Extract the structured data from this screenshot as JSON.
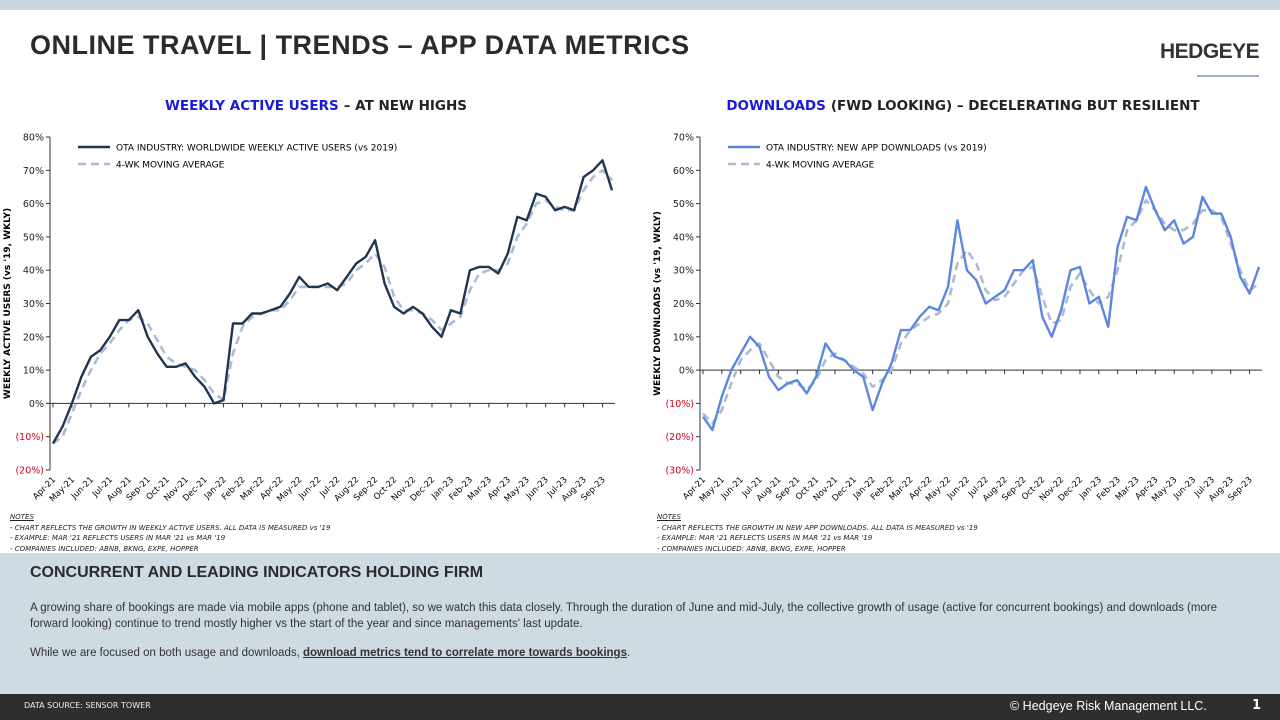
{
  "header": {
    "title": "ONLINE TRAVEL | TRENDS – APP DATA METRICS",
    "logo": "HEDGEYE"
  },
  "chart_data": [
    {
      "type": "line",
      "title_highlight": "WEEKLY ACTIVE USERS",
      "title": "– AT NEW HIGHS",
      "ylabel": "WEEKLY ACTIVE USERS (vs '19, WKLY)",
      "categories": [
        "Apr-21",
        null,
        "May-21",
        null,
        "Jun-21",
        null,
        "Jul-21",
        null,
        "Aug-21",
        null,
        "Sep-21",
        null,
        "Oct-21",
        null,
        "Nov-21",
        null,
        "Dec-21",
        null,
        "Jan-22",
        null,
        "Feb-22",
        null,
        "Mar-22",
        null,
        "Apr-22",
        null,
        "May-22",
        null,
        "Jun-22",
        null,
        "Jul-22",
        null,
        "Aug-22",
        null,
        "Sep-22",
        null,
        "Oct-22",
        null,
        "Nov-22",
        null,
        "Dec-22",
        null,
        "Jan-23",
        null,
        "Feb-23",
        null,
        "Mar-23",
        null,
        "Apr-23",
        null,
        "May-23",
        null,
        "Jun-23",
        null,
        "Jul-23",
        null,
        "Aug-23",
        null,
        "Sep-23",
        null
      ],
      "series": [
        {
          "name": "OTA INDUSTRY: WORLDWIDE WEEKLY ACTIVE USERS (vs 2019)",
          "color": "#1f3550",
          "dashed": false,
          "values": [
            -12,
            -7,
            0,
            8,
            14,
            16,
            20,
            25,
            25,
            28,
            20,
            15,
            11,
            11,
            12,
            8,
            5,
            0,
            1,
            24,
            24,
            27,
            27,
            28,
            29,
            33,
            38,
            35,
            35,
            36,
            34,
            38,
            42,
            44,
            49,
            36,
            29,
            27,
            29,
            27,
            23,
            20,
            28,
            27,
            40,
            41,
            41,
            39,
            45,
            56,
            55,
            63,
            62,
            58,
            59,
            58,
            68,
            70,
            73,
            64
          ]
        },
        {
          "name": "4-WK MOVING AVERAGE",
          "color": "#a9bcd6",
          "dashed": true,
          "values": [
            -12,
            -10,
            -3,
            4,
            10,
            15,
            18,
            22,
            25,
            26,
            24,
            19,
            14,
            12,
            11,
            10,
            7,
            3,
            1,
            15,
            23,
            26,
            27,
            28,
            28,
            31,
            35,
            35,
            35,
            35,
            35,
            36,
            40,
            42,
            45,
            41,
            32,
            28,
            28,
            27,
            25,
            22,
            24,
            26,
            34,
            39,
            40,
            40,
            42,
            50,
            54,
            60,
            61,
            59,
            58,
            58,
            64,
            68,
            70,
            67
          ]
        }
      ],
      "ylim": [
        -20,
        80
      ],
      "yticks": [
        {
          "value": -20,
          "label": "(20%)"
        },
        {
          "value": -10,
          "label": "(10%)"
        },
        {
          "value": 0,
          "label": "0%"
        },
        {
          "value": 10,
          "label": "10%"
        },
        {
          "value": 20,
          "label": "20%"
        },
        {
          "value": 30,
          "label": "30%"
        },
        {
          "value": 40,
          "label": "40%"
        },
        {
          "value": 50,
          "label": "50%"
        },
        {
          "value": 60,
          "label": "60%"
        },
        {
          "value": 70,
          "label": "70%"
        },
        {
          "value": 80,
          "label": "80%"
        }
      ],
      "grid": false,
      "legend": "upper left",
      "notes": {
        "heading": "NOTES",
        "lines": [
          "- CHART REFLECTS THE GROWTH IN WEEKLY ACTIVE USERS. ALL DATA IS MEASURED vs '19",
          "- EXAMPLE:  MAR '21 REFLECTS USERS IN MAR '21 vs MAR '19",
          "- COMPANIES INCLUDED: ABNB, BKNG, EXPE, HOPPER"
        ]
      }
    },
    {
      "type": "line",
      "title_highlight": "DOWNLOADS",
      "title": "(FWD LOOKING) – DECELERATING BUT RESILIENT",
      "ylabel": "WEEKLY DOWNLOADS (vs '19, WKLY)",
      "categories": [
        "Apr-21",
        null,
        "May-21",
        null,
        "Jun-21",
        null,
        "Jul-21",
        null,
        "Aug-21",
        null,
        "Sep-21",
        null,
        "Oct-21",
        null,
        "Nov-21",
        null,
        "Dec-21",
        null,
        "Jan-22",
        null,
        "Feb-22",
        null,
        "Mar-22",
        null,
        "Apr-22",
        null,
        "May-22",
        null,
        "Jun-22",
        null,
        "Jul-22",
        null,
        "Aug-22",
        null,
        "Sep-22",
        null,
        "Oct-22",
        null,
        "Nov-22",
        null,
        "Dec-22",
        null,
        "Jan-23",
        null,
        "Feb-23",
        null,
        "Mar-23",
        null,
        "Apr-23",
        null,
        "May-23",
        null,
        "Jun-23",
        null,
        "Jul-23",
        null,
        "Aug-23",
        null,
        "Sep-23",
        null
      ],
      "series": [
        {
          "name": "OTA INDUSTRY: NEW APP DOWNLOADS (vs 2019)",
          "color": "#5b87e0",
          "dashed": false,
          "values": [
            -14,
            -18,
            -8,
            0,
            5,
            10,
            7,
            -2,
            -6,
            -4,
            -3,
            -7,
            -2,
            8,
            4,
            3,
            0,
            -2,
            -12,
            -4,
            2,
            12,
            12,
            16,
            19,
            18,
            25,
            45,
            30,
            27,
            20,
            22,
            24,
            30,
            30,
            33,
            16,
            10,
            18,
            30,
            31,
            20,
            22,
            13,
            37,
            46,
            45,
            55,
            48,
            42,
            45,
            38,
            40,
            52,
            47,
            47,
            40,
            28,
            23,
            31
          ]
        },
        {
          "name": "4-WK MOVING AVERAGE",
          "color": "#a9bcd6",
          "dashed": true,
          "values": [
            -13,
            -16,
            -12,
            -4,
            3,
            6,
            8,
            3,
            -2,
            -4,
            -4,
            -6,
            -3,
            3,
            5,
            3,
            1,
            -1,
            -5,
            -3,
            0,
            8,
            12,
            14,
            16,
            17,
            20,
            32,
            36,
            32,
            24,
            21,
            22,
            26,
            30,
            31,
            22,
            14,
            15,
            25,
            29,
            24,
            20,
            22,
            30,
            42,
            45,
            51,
            48,
            44,
            42,
            42,
            44,
            48,
            48,
            46,
            38,
            30,
            24,
            26
          ]
        }
      ],
      "ylim": [
        -30,
        70
      ],
      "yticks": [
        {
          "value": -30,
          "label": "(30%)"
        },
        {
          "value": -20,
          "label": "(20%)"
        },
        {
          "value": -10,
          "label": "(10%)"
        },
        {
          "value": 0,
          "label": "0%"
        },
        {
          "value": 10,
          "label": "10%"
        },
        {
          "value": 20,
          "label": "20%"
        },
        {
          "value": 30,
          "label": "30%"
        },
        {
          "value": 40,
          "label": "40%"
        },
        {
          "value": 50,
          "label": "50%"
        },
        {
          "value": 60,
          "label": "60%"
        },
        {
          "value": 70,
          "label": "70%"
        }
      ],
      "grid": false,
      "legend": "upper left",
      "notes": {
        "heading": "NOTES",
        "lines": [
          "- CHART REFLECTS THE GROWTH IN NEW APP DOWNLOADS. ALL DATA IS MEASURED vs '19",
          "- EXAMPLE:  MAR '21 REFLECTS USERS IN MAR '21 vs MAR '19",
          "- COMPANIES INCLUDED: ABNB, BKNG, EXPE, HOPPER"
        ]
      }
    }
  ],
  "section": {
    "heading": "CONCURRENT AND LEADING INDICATORS HOLDING FIRM",
    "paragraph1": "A growing share of bookings are made via mobile apps (phone and tablet), so we watch this data closely. Through the duration of June and mid-July, the collective growth of usage (active for concurrent bookings) and downloads (more forward looking) continue to trend mostly higher vs the start of the year and since managements' last update.",
    "paragraph2_start": "While we are focused on both usage and downloads, ",
    "paragraph2_link": "download metrics tend to correlate more towards bookings",
    "paragraph2_end": "."
  },
  "footer": {
    "source": "DATA SOURCE: SENSOR TOWER",
    "copyright": "© Hedgeye Risk Management LLC.",
    "page": "1"
  }
}
